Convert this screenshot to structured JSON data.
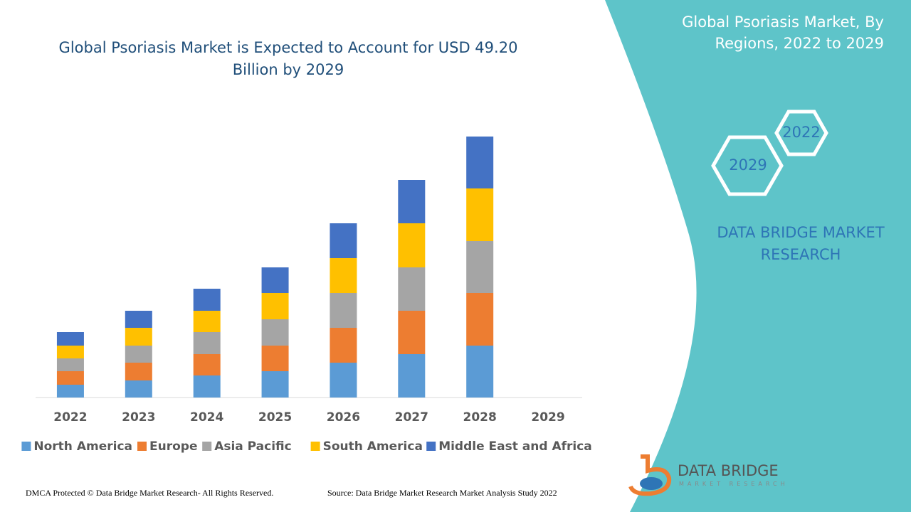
{
  "chart_data": {
    "type": "stacked-bar",
    "title": "Global Psoriasis Market is Expected to Account for USD 49.20 Billion by 2029",
    "categories": [
      "2022",
      "2023",
      "2024",
      "2025",
      "2026",
      "2027",
      "2028",
      "2029"
    ],
    "series": [
      {
        "name": "North America",
        "color": "#5b9bd5",
        "values": [
          18,
          24,
          31,
          37,
          49,
          61,
          73,
          null
        ]
      },
      {
        "name": "Europe",
        "color": "#ed7d31",
        "values": [
          19,
          25,
          30,
          36,
          49,
          61,
          74,
          null
        ]
      },
      {
        "name": "Asia Pacific",
        "color": "#a5a5a5",
        "values": [
          18,
          24,
          31,
          37,
          49,
          61,
          73,
          null
        ]
      },
      {
        "name": "South America",
        "color": "#ffc000",
        "values": [
          18,
          25,
          30,
          37,
          49,
          62,
          74,
          null
        ]
      },
      {
        "name": "Middle East and Africa",
        "color": "#4472c4",
        "values": [
          19,
          24,
          31,
          36,
          49,
          61,
          73,
          null
        ]
      }
    ],
    "ylim": [
      0,
      400
    ],
    "legend": "bottom"
  },
  "panel": {
    "title": "Global Psoriasis Market, By Regions, 2022 to 2029",
    "hex_start": "2022",
    "hex_end": "2029",
    "brand": "DATA BRIDGE MARKET RESEARCH"
  },
  "logo": {
    "name": "DATA BRIDGE",
    "sub": "MARKET RESEARCH"
  },
  "footer": {
    "left": "DMCA Protected © Data Bridge Market Research- All Rights Reserved.",
    "right": "Source: Data Bridge Market Research Market Analysis Study 2022"
  }
}
